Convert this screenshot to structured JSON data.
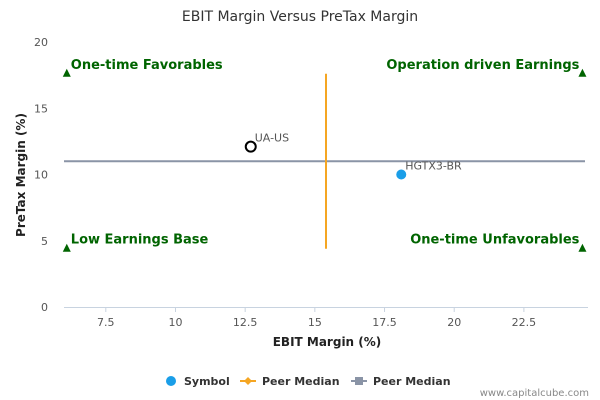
{
  "chart_data": {
    "type": "scatter",
    "title": "EBIT Margin Versus PreTax Margin",
    "xlabel": "EBIT Margin (%)",
    "ylabel": "PreTax Margin (%)",
    "xlim": [
      6.0,
      24.8
    ],
    "ylim": [
      0,
      20
    ],
    "x_ticks": [
      "7.5",
      "10",
      "12.5",
      "15",
      "17.5",
      "20",
      "22.5"
    ],
    "x_tick_values": [
      7.5,
      10,
      12.5,
      15,
      17.5,
      20,
      22.5
    ],
    "y_ticks": [
      "0",
      "5",
      "10",
      "15",
      "20"
    ],
    "y_tick_values": [
      0,
      5,
      10,
      15,
      20
    ],
    "grid": false,
    "legend_position": "bottom",
    "points": [
      {
        "label": "UA-US",
        "x": 12.7,
        "y": 12.1,
        "style": "hollow"
      },
      {
        "label": "HGTX3-BR",
        "x": 18.1,
        "y": 10.0,
        "style": "filled"
      }
    ],
    "peer_median_x": 15.4,
    "peer_median_x_range": [
      4.4,
      17.6
    ],
    "peer_median_y": 11.0,
    "quadrants": [
      {
        "label": "One-time Favorables",
        "position": "top-left",
        "marker_x": 6.1,
        "marker_y": 17.6
      },
      {
        "label": "Operation driven Earnings",
        "position": "top-right",
        "marker_x": 24.6,
        "marker_y": 17.6
      },
      {
        "label": "Low Earnings Base",
        "position": "bottom-left",
        "marker_x": 6.1,
        "marker_y": 4.4
      },
      {
        "label": "One-time Unfavorables",
        "position": "bottom-right",
        "marker_x": 24.6,
        "marker_y": 4.4
      }
    ],
    "legend": [
      {
        "label": "Symbol",
        "kind": "dot",
        "color": "#1a9ee8"
      },
      {
        "label": "Peer Median",
        "kind": "line-diamond",
        "color": "#f5a623"
      },
      {
        "label": "Peer Median",
        "kind": "line-square",
        "color": "#8a94a6"
      }
    ],
    "colors": {
      "filled_point": "#1a9ee8",
      "hollow_point": "#000000",
      "median_vertical": "#f5a623",
      "median_horizontal": "#8a94a6",
      "quadrant_marker": "#006400"
    }
  },
  "watermark": "www.capitalcube.com"
}
